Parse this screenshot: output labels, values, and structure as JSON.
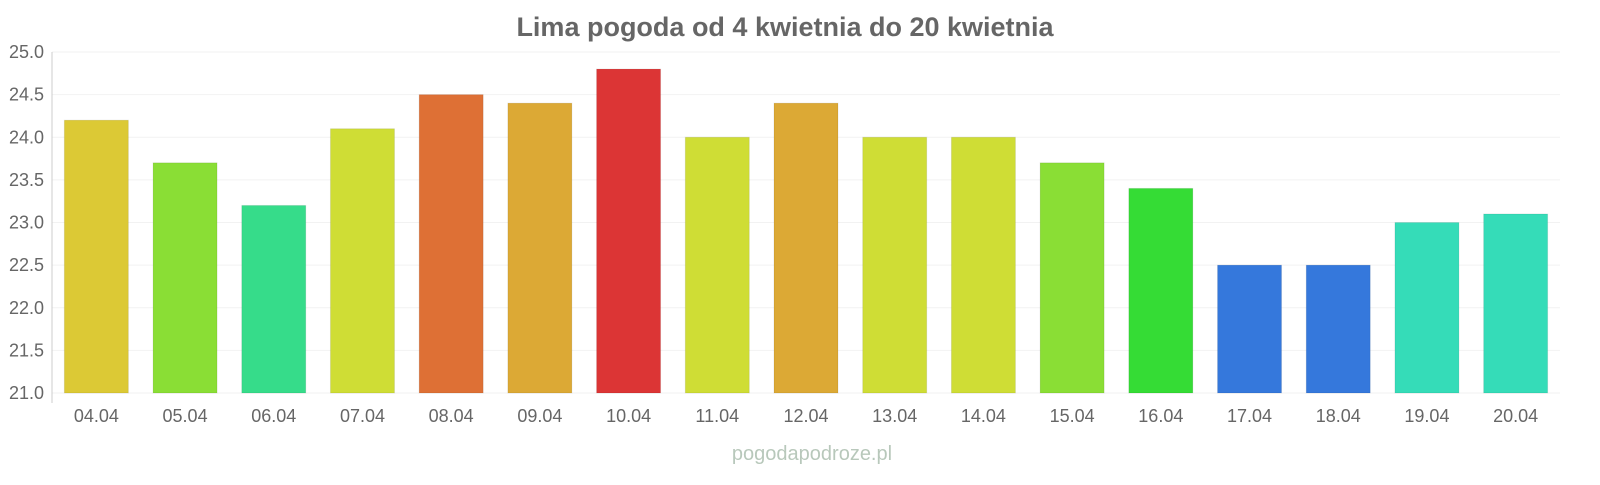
{
  "chart_data": {
    "type": "bar",
    "title": "Lima pogoda od 4 kwietnia do 20 kwietnia",
    "xlabel": "",
    "ylabel": "",
    "ylim": [
      21.0,
      25.0
    ],
    "yticks": [
      "21.0",
      "21.5",
      "22.0",
      "22.5",
      "23.0",
      "23.5",
      "24.0",
      "24.5",
      "25.0"
    ],
    "grid": true,
    "categories": [
      "04.04",
      "05.04",
      "06.04",
      "07.04",
      "08.04",
      "09.04",
      "10.04",
      "11.04",
      "12.04",
      "13.04",
      "14.04",
      "15.04",
      "16.04",
      "17.04",
      "18.04",
      "19.04",
      "20.04"
    ],
    "values": [
      24.2,
      23.7,
      23.2,
      24.1,
      24.5,
      24.4,
      24.8,
      24.0,
      24.4,
      24.0,
      24.0,
      23.7,
      23.4,
      22.5,
      22.5,
      23.0,
      23.1
    ],
    "colors": [
      "#dcc935",
      "#8ade35",
      "#36dc8a",
      "#cfdd35",
      "#de7035",
      "#dca935",
      "#dc3535",
      "#cfdd35",
      "#dca935",
      "#cfdd35",
      "#cfdd35",
      "#8ade35",
      "#35dc35",
      "#3578dc",
      "#3578dc",
      "#35dcb8",
      "#35dcb8"
    ]
  },
  "watermark": "pogodapodroze.pl"
}
